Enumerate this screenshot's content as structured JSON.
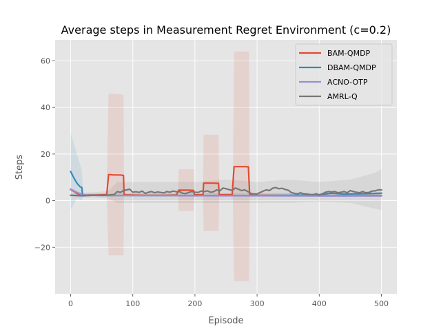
{
  "chart_data": {
    "type": "line",
    "title": "Average steps in Measurement Regret Environment (c=0.2)",
    "xlabel": "Episode",
    "ylabel": "Steps",
    "xlim": [
      -25,
      525
    ],
    "ylim": [
      -40,
      69
    ],
    "xticks": [
      0,
      100,
      200,
      300,
      400,
      500
    ],
    "yticks": [
      -20,
      0,
      20,
      40,
      60
    ],
    "xtick_labels": [
      "0",
      "100",
      "200",
      "300",
      "400",
      "500"
    ],
    "ytick_labels": [
      "−20",
      "0",
      "20",
      "40",
      "60"
    ],
    "grid": true,
    "legend_position": "top-right",
    "colors": {
      "plot_bg": "#e5e5e5",
      "grid": "#ffffff",
      "text": "#555555",
      "title": "#000000"
    },
    "series": [
      {
        "name": "BAM-QMDP",
        "color": "#e24a33",
        "points": [
          [
            0,
            4.8
          ],
          [
            5,
            4
          ],
          [
            10,
            3.1
          ],
          [
            15,
            2.6
          ],
          [
            20,
            2.4
          ],
          [
            30,
            2.4
          ],
          [
            40,
            2.4
          ],
          [
            50,
            2.5
          ],
          [
            58,
            2.6
          ],
          [
            61,
            11.2
          ],
          [
            70,
            11
          ],
          [
            80,
            11
          ],
          [
            85,
            10.8
          ],
          [
            86,
            2.5
          ],
          [
            100,
            2.4
          ],
          [
            120,
            2.3
          ],
          [
            150,
            2.3
          ],
          [
            170,
            2.4
          ],
          [
            174,
            4.5
          ],
          [
            190,
            4.5
          ],
          [
            198,
            4.4
          ],
          [
            199,
            2.5
          ],
          [
            213,
            2.5
          ],
          [
            214,
            7.5
          ],
          [
            230,
            7.5
          ],
          [
            238,
            7.4
          ],
          [
            239,
            2.5
          ],
          [
            260,
            2.6
          ],
          [
            263,
            14.6
          ],
          [
            280,
            14.6
          ],
          [
            286,
            14.5
          ],
          [
            288,
            2.5
          ],
          [
            300,
            2.3
          ],
          [
            350,
            2.2
          ],
          [
            400,
            2.1
          ],
          [
            450,
            2.1
          ],
          [
            500,
            2.2
          ]
        ],
        "band": [
          [
            0,
            4,
            5.5
          ],
          [
            20,
            2,
            3
          ],
          [
            58,
            2,
            3
          ],
          [
            61,
            -23.5,
            46
          ],
          [
            85,
            -23.5,
            45.5
          ],
          [
            86,
            2,
            3
          ],
          [
            173,
            2,
            3
          ],
          [
            174,
            -4.5,
            13.5
          ],
          [
            198,
            -4.5,
            13.5
          ],
          [
            199,
            2,
            3
          ],
          [
            213,
            2,
            3
          ],
          [
            214,
            -13,
            28.3
          ],
          [
            238,
            -13,
            28.3
          ],
          [
            239,
            2,
            3
          ],
          [
            261,
            2,
            3
          ],
          [
            263,
            -34.5,
            64
          ],
          [
            287,
            -34.5,
            64
          ],
          [
            288,
            2,
            3
          ],
          [
            500,
            2,
            3
          ]
        ]
      },
      {
        "name": "DBAM-QMDP",
        "color": "#348abd",
        "points": [
          [
            0,
            12.5
          ],
          [
            5,
            9.8
          ],
          [
            10,
            7.5
          ],
          [
            15,
            6
          ],
          [
            18,
            5.6
          ],
          [
            19,
            2.6
          ],
          [
            25,
            2.3
          ],
          [
            50,
            2.2
          ],
          [
            100,
            2.2
          ],
          [
            200,
            2.2
          ],
          [
            300,
            2.2
          ],
          [
            350,
            2.3
          ],
          [
            380,
            2.4
          ],
          [
            400,
            2.5
          ],
          [
            420,
            3.2
          ],
          [
            440,
            2.8
          ],
          [
            460,
            2.9
          ],
          [
            480,
            3
          ],
          [
            500,
            3.2
          ]
        ],
        "band": [
          [
            0,
            -4,
            29
          ],
          [
            10,
            1,
            20
          ],
          [
            18,
            0,
            13
          ],
          [
            20,
            2,
            3
          ],
          [
            500,
            2,
            3.5
          ]
        ]
      },
      {
        "name": "ACNO-OTP",
        "color": "#988ed5",
        "points": [
          [
            0,
            4.9
          ],
          [
            10,
            3.5
          ],
          [
            20,
            2.4
          ],
          [
            30,
            2.3
          ],
          [
            100,
            2.2
          ],
          [
            200,
            2.1
          ],
          [
            300,
            2.1
          ],
          [
            400,
            2
          ],
          [
            500,
            2
          ]
        ],
        "band": []
      },
      {
        "name": "AMRL-Q",
        "color": "#777777",
        "points": [
          [
            0,
            2.3
          ],
          [
            10,
            2.2
          ],
          [
            20,
            2.1
          ],
          [
            30,
            2.2
          ],
          [
            40,
            2.3
          ],
          [
            50,
            2.3
          ],
          [
            60,
            2.4
          ],
          [
            70,
            2.6
          ],
          [
            75,
            3.9
          ],
          [
            80,
            3.5
          ],
          [
            85,
            4.3
          ],
          [
            90,
            4.6
          ],
          [
            95,
            4.9
          ],
          [
            100,
            3.6
          ],
          [
            105,
            3.8
          ],
          [
            110,
            3.5
          ],
          [
            115,
            4.1
          ],
          [
            120,
            3.1
          ],
          [
            125,
            3.6
          ],
          [
            130,
            3.9
          ],
          [
            135,
            3.4
          ],
          [
            140,
            3.7
          ],
          [
            145,
            3.5
          ],
          [
            150,
            3.3
          ],
          [
            155,
            3.9
          ],
          [
            160,
            3.6
          ],
          [
            165,
            4.1
          ],
          [
            170,
            3.8
          ],
          [
            175,
            3.9
          ],
          [
            180,
            3.2
          ],
          [
            185,
            3
          ],
          [
            190,
            3.5
          ],
          [
            195,
            3.9
          ],
          [
            200,
            3.6
          ],
          [
            205,
            3.5
          ],
          [
            210,
            4.1
          ],
          [
            215,
            3.9
          ],
          [
            220,
            4.2
          ],
          [
            225,
            3.6
          ],
          [
            230,
            3.8
          ],
          [
            235,
            4.6
          ],
          [
            240,
            4.2
          ],
          [
            245,
            5.4
          ],
          [
            250,
            5.1
          ],
          [
            255,
            4.7
          ],
          [
            260,
            4.4
          ],
          [
            265,
            5.4
          ],
          [
            270,
            4.9
          ],
          [
            275,
            4.3
          ],
          [
            280,
            4.6
          ],
          [
            285,
            3.9
          ],
          [
            290,
            3.1
          ],
          [
            295,
            2.8
          ],
          [
            300,
            2.9
          ],
          [
            305,
            3.5
          ],
          [
            310,
            4.1
          ],
          [
            315,
            4.6
          ],
          [
            320,
            4.3
          ],
          [
            325,
            5.3
          ],
          [
            330,
            5.6
          ],
          [
            335,
            5.1
          ],
          [
            340,
            5.3
          ],
          [
            345,
            4.8
          ],
          [
            350,
            4.5
          ],
          [
            355,
            3.5
          ],
          [
            360,
            3.1
          ],
          [
            365,
            2.9
          ],
          [
            370,
            3.4
          ],
          [
            375,
            2.9
          ],
          [
            380,
            2.8
          ],
          [
            385,
            2.6
          ],
          [
            390,
            2.5
          ],
          [
            395,
            2.9
          ],
          [
            400,
            2.4
          ],
          [
            405,
            2.9
          ],
          [
            410,
            3.6
          ],
          [
            415,
            3.9
          ],
          [
            420,
            3.7
          ],
          [
            425,
            3.9
          ],
          [
            430,
            3.4
          ],
          [
            435,
            3.6
          ],
          [
            440,
            3.9
          ],
          [
            445,
            3.4
          ],
          [
            450,
            4.3
          ],
          [
            455,
            3.9
          ],
          [
            460,
            3.6
          ],
          [
            465,
            3.4
          ],
          [
            470,
            3.9
          ],
          [
            475,
            3.4
          ],
          [
            480,
            3.5
          ],
          [
            485,
            4.1
          ],
          [
            490,
            4.2
          ],
          [
            495,
            4.6
          ],
          [
            500,
            4.6
          ]
        ],
        "band": [
          [
            0,
            1.5,
            3
          ],
          [
            60,
            1,
            4
          ],
          [
            75,
            -1,
            8
          ],
          [
            100,
            -1,
            8
          ],
          [
            150,
            -1,
            8
          ],
          [
            200,
            -1,
            8
          ],
          [
            250,
            -1,
            9
          ],
          [
            300,
            -1,
            8
          ],
          [
            350,
            -1,
            9
          ],
          [
            400,
            -0.5,
            8
          ],
          [
            450,
            -1,
            9
          ],
          [
            490,
            -3.5,
            12
          ],
          [
            500,
            -4,
            13.5
          ]
        ]
      }
    ]
  }
}
